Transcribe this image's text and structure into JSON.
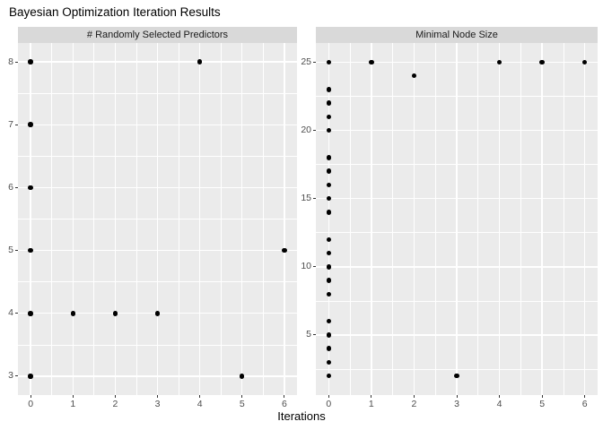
{
  "title": "Bayesian Optimization Iteration Results",
  "xlabel": "Iterations",
  "colors": {
    "panel_background": "#EBEBEB",
    "strip_background": "#D9D9D9",
    "gridline": "#FFFFFF",
    "point": "#000000",
    "axis_text": "#4D4D4D",
    "strip_text": "#1A1A1A",
    "title_text": "#000000",
    "tick_mark": "#333333"
  },
  "chart_data": [
    {
      "type": "scatter",
      "facet_label": "# Randomly Selected Predictors",
      "xlabel": "Iterations",
      "ylabel": "",
      "x": [
        0,
        0,
        0,
        0,
        0,
        0,
        1,
        2,
        3,
        4,
        5,
        6
      ],
      "y": [
        8,
        7,
        6,
        5,
        4,
        3,
        4,
        4,
        4,
        8,
        3,
        5
      ],
      "xlim": [
        -0.3,
        6.3
      ],
      "ylim": [
        2.7,
        8.3
      ],
      "x_ticks": [
        0,
        1,
        2,
        3,
        4,
        5,
        6
      ],
      "y_ticks": [
        3,
        4,
        5,
        6,
        7,
        8
      ],
      "grid": "major-and-minor",
      "legend": false
    },
    {
      "type": "scatter",
      "facet_label": "Minimal Node Size",
      "xlabel": "Iterations",
      "ylabel": "",
      "x": [
        0,
        0,
        0,
        0,
        0,
        0,
        0,
        0,
        0,
        0,
        0,
        0,
        0,
        0,
        0,
        0,
        0,
        0,
        0,
        0,
        1,
        2,
        3,
        4,
        5,
        6
      ],
      "y": [
        25,
        23,
        22,
        21,
        20,
        18,
        17,
        16,
        15,
        14,
        12,
        11,
        10,
        9,
        8,
        6,
        5,
        4,
        3,
        2,
        25,
        24,
        2,
        25,
        25,
        25
      ],
      "xlim": [
        -0.3,
        6.3
      ],
      "ylim": [
        0.6,
        26.4
      ],
      "x_ticks": [
        0,
        1,
        2,
        3,
        4,
        5,
        6
      ],
      "y_ticks": [
        5,
        10,
        15,
        20,
        25
      ],
      "grid": "major-and-minor",
      "legend": false
    }
  ]
}
